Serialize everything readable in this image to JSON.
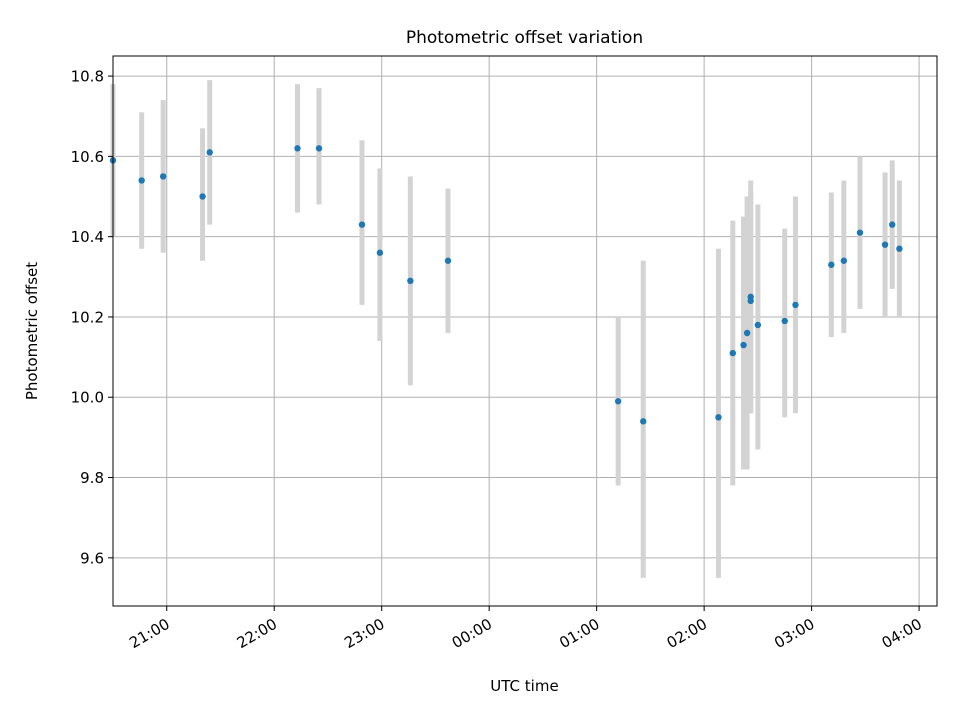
{
  "chart_data": {
    "type": "scatter",
    "title": "Photometric offset variation",
    "xlabel": "UTC time",
    "ylabel": "Photometric offset",
    "x_axis": "time",
    "xlim": [
      "20:30",
      "04:10"
    ],
    "ylim": [
      9.48,
      10.85
    ],
    "x_ticks": [
      "21:00",
      "22:00",
      "23:00",
      "00:00",
      "01:00",
      "02:00",
      "03:00",
      "04:00"
    ],
    "y_ticks": [
      "9.6",
      "9.8",
      "10.0",
      "10.2",
      "10.4",
      "10.6",
      "10.8"
    ],
    "grid": true,
    "point_color": "#1f77b4",
    "errorbar_color": "#d3d3d3",
    "points": [
      {
        "t": "20:30",
        "y": 10.59,
        "lo": 10.4,
        "hi": 10.78
      },
      {
        "t": "20:46",
        "y": 10.54,
        "lo": 10.37,
        "hi": 10.71
      },
      {
        "t": "20:58",
        "y": 10.55,
        "lo": 10.36,
        "hi": 10.74
      },
      {
        "t": "21:20",
        "y": 10.5,
        "lo": 10.34,
        "hi": 10.67
      },
      {
        "t": "21:24",
        "y": 10.61,
        "lo": 10.43,
        "hi": 10.79
      },
      {
        "t": "22:13",
        "y": 10.62,
        "lo": 10.46,
        "hi": 10.78
      },
      {
        "t": "22:25",
        "y": 10.62,
        "lo": 10.48,
        "hi": 10.77
      },
      {
        "t": "22:49",
        "y": 10.43,
        "lo": 10.23,
        "hi": 10.64
      },
      {
        "t": "22:59",
        "y": 10.36,
        "lo": 10.14,
        "hi": 10.57
      },
      {
        "t": "23:16",
        "y": 10.29,
        "lo": 10.03,
        "hi": 10.55
      },
      {
        "t": "23:37",
        "y": 10.34,
        "lo": 10.16,
        "hi": 10.52
      },
      {
        "t": "01:12",
        "y": 9.99,
        "lo": 9.78,
        "hi": 10.2
      },
      {
        "t": "01:26",
        "y": 9.94,
        "lo": 9.55,
        "hi": 10.34
      },
      {
        "t": "02:08",
        "y": 9.95,
        "lo": 9.55,
        "hi": 10.37
      },
      {
        "t": "02:16",
        "y": 10.11,
        "lo": 9.78,
        "hi": 10.44
      },
      {
        "t": "02:22",
        "y": 10.13,
        "lo": 9.82,
        "hi": 10.45
      },
      {
        "t": "02:24",
        "y": 10.16,
        "lo": 9.82,
        "hi": 10.5
      },
      {
        "t": "02:26",
        "y": 10.25,
        "lo": 9.96,
        "hi": 10.54
      },
      {
        "t": "02:26",
        "y": 10.24,
        "lo": 9.96,
        "hi": 10.51
      },
      {
        "t": "02:30",
        "y": 10.18,
        "lo": 9.87,
        "hi": 10.48
      },
      {
        "t": "02:45",
        "y": 10.19,
        "lo": 9.95,
        "hi": 10.42
      },
      {
        "t": "02:51",
        "y": 10.23,
        "lo": 9.96,
        "hi": 10.5
      },
      {
        "t": "03:11",
        "y": 10.33,
        "lo": 10.15,
        "hi": 10.51
      },
      {
        "t": "03:18",
        "y": 10.34,
        "lo": 10.16,
        "hi": 10.54
      },
      {
        "t": "03:27",
        "y": 10.41,
        "lo": 10.22,
        "hi": 10.6
      },
      {
        "t": "03:41",
        "y": 10.38,
        "lo": 10.2,
        "hi": 10.56
      },
      {
        "t": "03:45",
        "y": 10.43,
        "lo": 10.27,
        "hi": 10.59
      },
      {
        "t": "03:49",
        "y": 10.37,
        "lo": 10.2,
        "hi": 10.54
      }
    ]
  }
}
